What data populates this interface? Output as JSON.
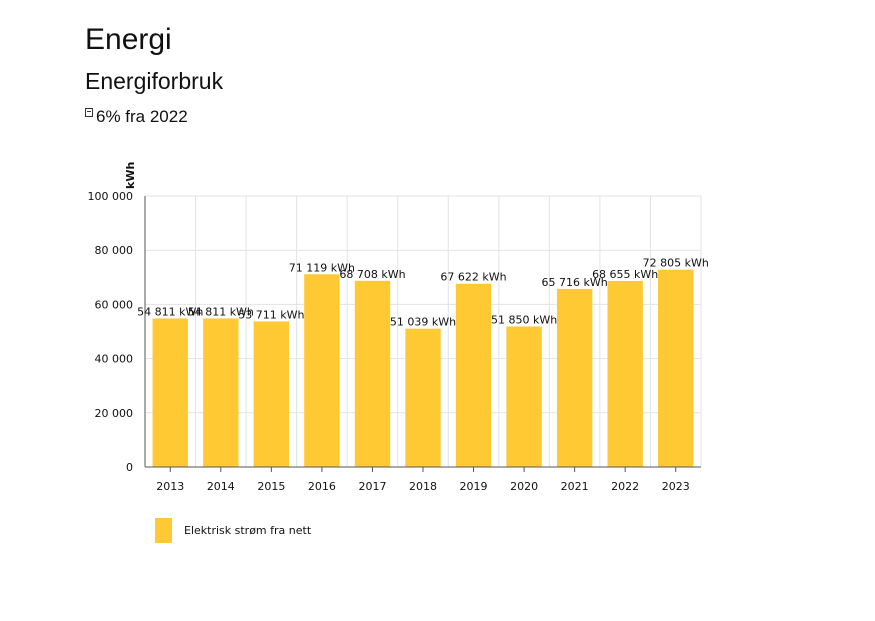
{
  "header": {
    "title": "Energi",
    "subtitle": "Energiforbruk",
    "change_text": "6% fra 2022"
  },
  "colors": {
    "bar": "#FEC932",
    "grid": "#e3e3e3",
    "axis": "#555555",
    "label_underline": "#d9342b"
  },
  "chart_data": {
    "type": "bar",
    "ylabel": "kWh",
    "ylim": [
      0,
      100000
    ],
    "yticks": [
      0,
      20000,
      40000,
      60000,
      80000,
      100000
    ],
    "ytick_labels": [
      "0",
      "20 000",
      "40 000",
      "60 000",
      "80 000",
      "100 000"
    ],
    "grid": true,
    "legend_position": "bottom-left",
    "categories": [
      "2013",
      "2014",
      "2015",
      "2016",
      "2017",
      "2018",
      "2019",
      "2020",
      "2021",
      "2022",
      "2023"
    ],
    "series": [
      {
        "name": "Elektrisk strøm fra nett",
        "values": [
          54811,
          54811,
          53711,
          71119,
          68708,
          51039,
          67622,
          51850,
          65716,
          68655,
          72805
        ],
        "labels": [
          "54 811 kWh",
          "54 811 kWh",
          "53 711 kWh",
          "71 119 kWh",
          "68 708 kWh",
          "51 039 kWh",
          "67 622 kWh",
          "51 850 kWh",
          "65 716 kWh",
          "68 655 kWh",
          "72 805 kWh"
        ]
      }
    ]
  }
}
